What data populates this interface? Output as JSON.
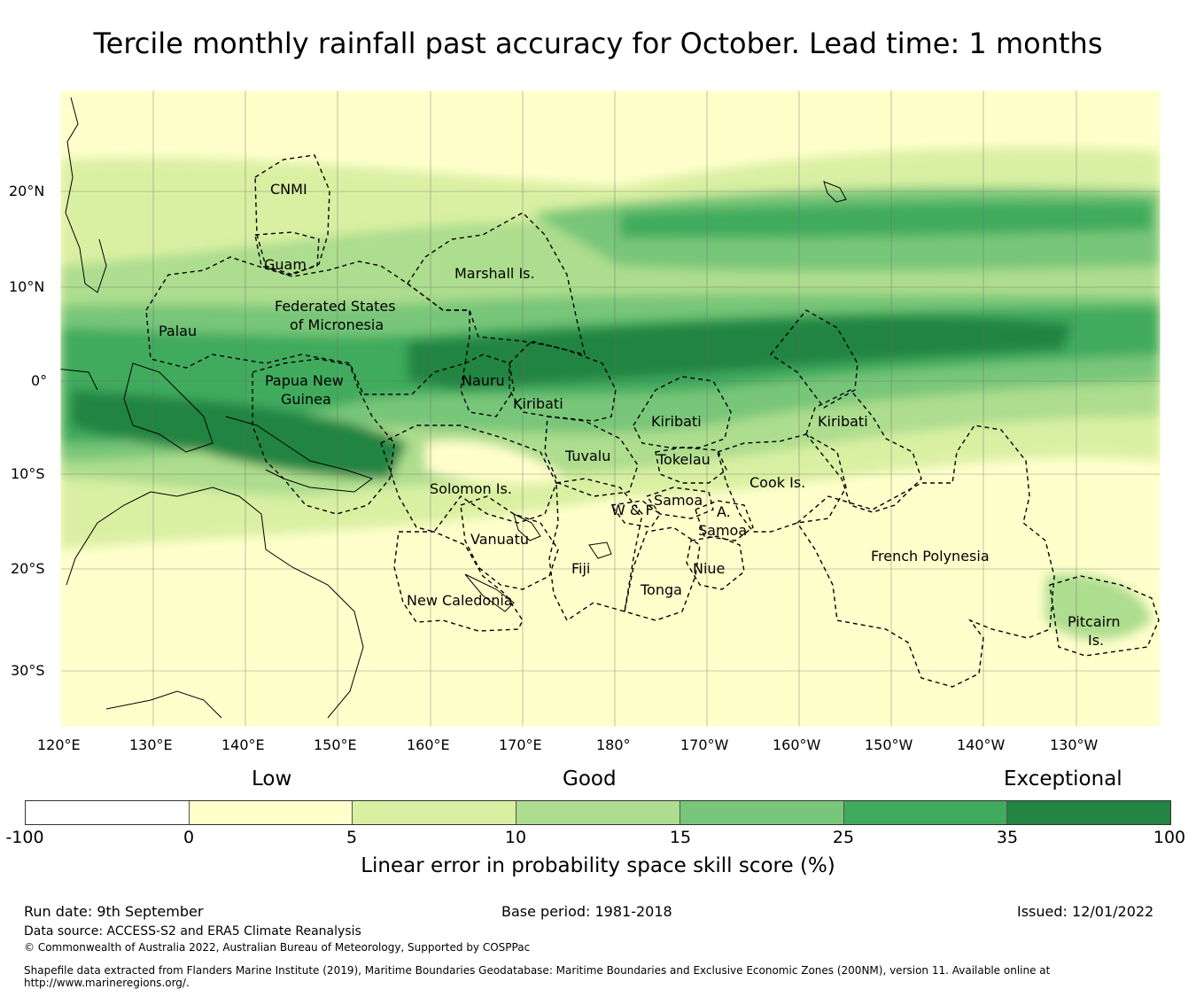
{
  "title": "Tercile monthly rainfall past accuracy for October. Lead time: 1 months",
  "map": {
    "lon_ticks": [
      "120°E",
      "130°E",
      "140°E",
      "150°E",
      "160°E",
      "170°E",
      "180°",
      "170°W",
      "160°W",
      "150°W",
      "140°W",
      "130°W"
    ],
    "lat_ticks": [
      "20°N",
      "10°N",
      "0°",
      "10°S",
      "20°S",
      "30°S"
    ],
    "regions": {
      "cnmi": "CNMI",
      "guam": "Guam",
      "marshall": "Marshall Is.",
      "fsm_1": "Federated States",
      "fsm_2": "of Micronesia",
      "palau": "Palau",
      "png_1": "Papua New",
      "png_2": "Guinea",
      "nauru": "Nauru",
      "kiribati_w": "Kiribati",
      "kiribati_c": "Kiribati",
      "kiribati_e": "Kiribati",
      "tuvalu": "Tuvalu",
      "tokelau": "Tokelau",
      "solomon": "Solomon Is.",
      "samoa": "Samoa",
      "wf": "W & F",
      "asamoa_1": "A.",
      "asamoa_2": "Samoa",
      "cook": "Cook Is.",
      "vanuatu": "Vanuatu",
      "fiji": "Fiji",
      "niue": "Niue",
      "tonga": "Tonga",
      "newcal": "New Caledonia",
      "frpoly": "French Polynesia",
      "pitcairn_1": "Pitcairn",
      "pitcairn_2": "Is."
    }
  },
  "legend": {
    "categories": [
      "Low",
      "Good",
      "Exceptional"
    ],
    "ticks": [
      "-100",
      "0",
      "5",
      "10",
      "15",
      "25",
      "35",
      "100"
    ],
    "colors": [
      "#ffffff",
      "#ffffcc",
      "#d9f0a3",
      "#addd8e",
      "#78c679",
      "#41ab5d",
      "#238443"
    ],
    "label": "Linear error in probability space skill score (%)"
  },
  "footer": {
    "run_date": "Run date: 9th September",
    "base_period": "Base period: 1981-2018",
    "issued": "Issued: 12/01/2022",
    "data_source": "Data source: ACCESS-S2 and ERA5 Climate Reanalysis",
    "copyright": "© Commonwealth of Australia 2022, Australian Bureau of Meteorology, Supported by COSPPac",
    "shapefile_1": "Shapefile data extracted from Flanders Marine Institute (2019), Maritime Boundaries Geodatabase: Maritime Boundaries and Exclusive Economic Zones (200NM), version 11. Available online at",
    "shapefile_2": "http://www.marineregions.org/."
  }
}
